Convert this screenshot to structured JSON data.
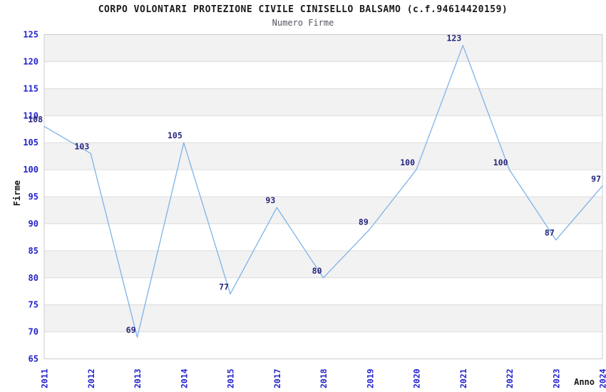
{
  "chart_data": {
    "type": "line",
    "title": "CORPO VOLONTARI PROTEZIONE CIVILE CINISELLO BALSAMO (c.f.94614420159)",
    "subtitle": "Numero Firme",
    "xlabel": "Anno",
    "ylabel": "Firme",
    "categories": [
      "2011",
      "2012",
      "2013",
      "2014",
      "2015",
      "2017",
      "2018",
      "2019",
      "2020",
      "2021",
      "2022",
      "2023",
      "2024"
    ],
    "values": [
      108,
      103,
      69,
      105,
      77,
      93,
      80,
      89,
      100,
      123,
      100,
      87,
      97
    ],
    "ylim": [
      65,
      125
    ],
    "ytick_step": 5,
    "yticks": [
      65,
      70,
      75,
      80,
      85,
      90,
      95,
      100,
      105,
      110,
      115,
      120,
      125
    ],
    "grid": true,
    "legend": false,
    "point_labels": true,
    "layout_hints": {
      "x_tick_rotation": -90,
      "alternating_bands": true,
      "missing_year": "2016"
    },
    "colors": {
      "line": "#7fb3e8",
      "tick_label": "#2323cd",
      "point_label": "#26267e",
      "band": "#f2f2f2",
      "grid": "#dcdcdc",
      "plot_border": "#cccccc",
      "title": "#1a1a1a",
      "subtitle": "#55555f",
      "axis_title": "#1a1a1a"
    }
  }
}
